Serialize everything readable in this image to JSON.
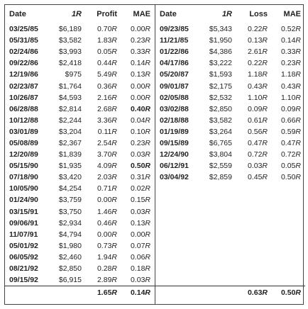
{
  "headers": {
    "left": [
      "Date",
      "1R",
      "Profit",
      "MAE"
    ],
    "right": [
      "Date",
      "1R",
      "Loss",
      "MAE"
    ]
  },
  "left_rows": [
    [
      "03/25/85",
      "$6,189",
      "0.70R",
      "0.00R"
    ],
    [
      "05/31/85",
      "$3,582",
      "1.83R",
      "0.23R"
    ],
    [
      "02/24/86",
      "$3,993",
      "0.05R",
      "0.33R"
    ],
    [
      "09/22/86",
      "$2,418",
      "0.44R",
      "0.14R"
    ],
    [
      "12/19/86",
      "$975",
      "5.49R",
      "0.13R"
    ],
    [
      "02/23/87",
      "$1,764",
      "0.36R",
      "0.00R"
    ],
    [
      "10/26/87",
      "$4,593",
      "2.16R",
      "0.00R"
    ],
    [
      "06/28/88",
      "$2,814",
      "2.68R",
      "0.40R"
    ],
    [
      "10/12/88",
      "$2,244",
      "3.36R",
      "0.04R"
    ],
    [
      "03/01/89",
      "$3,204",
      "0.11R",
      "0.10R"
    ],
    [
      "05/08/89",
      "$2,367",
      "2.54R",
      "0.23R"
    ],
    [
      "12/20/89",
      "$1,839",
      "3.70R",
      "0.03R"
    ],
    [
      "05/15/90",
      "$1,935",
      "4.09R",
      "0.50R"
    ],
    [
      "07/18/90",
      "$3,420",
      "2.03R",
      "0.31R"
    ],
    [
      "10/05/90",
      "$4,254",
      "0.71R",
      "0.02R"
    ],
    [
      "01/24/90",
      "$3,759",
      "0.00R",
      "0.15R"
    ],
    [
      "03/15/91",
      "$3,750",
      "1.46R",
      "0.03R"
    ],
    [
      "09/06/91",
      "$2,934",
      "0.46R",
      "0.13R"
    ],
    [
      "11/07/91",
      "$4,794",
      "0.00R",
      "0.00R"
    ],
    [
      "05/01/92",
      "$1,980",
      "0.73R",
      "0.07R"
    ],
    [
      "06/05/92",
      "$2,460",
      "1.94R",
      "0.06R"
    ],
    [
      "08/21/92",
      "$2,850",
      "0.28R",
      "0.18R"
    ],
    [
      "09/15/92",
      "$6,915",
      "2.89R",
      "0.03R"
    ]
  ],
  "left_bold_mae": [
    7,
    12
  ],
  "left_totals": [
    "",
    "",
    "1.65R",
    "0.14R"
  ],
  "right_rows": [
    [
      "09/23/85",
      "$5,343",
      "0.22R",
      "0.52R"
    ],
    [
      "11/21/85",
      "$1,950",
      "0.13R",
      "0.14R"
    ],
    [
      "01/22/86",
      "$4,386",
      "2.61R",
      "0.33R"
    ],
    [
      "04/17/86",
      "$3,222",
      "0.22R",
      "0.23R"
    ],
    [
      "05/20/87",
      "$1,593",
      "1.18R",
      "1.18R"
    ],
    [
      "09/01/87",
      "$2,175",
      "0.43R",
      "0.43R"
    ],
    [
      "02/05/88",
      "$2,532",
      "1.10R",
      "1.10R"
    ],
    [
      "03/02/88",
      "$2,850",
      "0.09R",
      "0.09R"
    ],
    [
      "02/18/88",
      "$3,582",
      "0.61R",
      "0.66R"
    ],
    [
      "01/19/89",
      "$3,264",
      "0.56R",
      "0.59R"
    ],
    [
      "09/15/89",
      "$6,765",
      "0.47R",
      "0.47R"
    ],
    [
      "12/24/90",
      "$3,804",
      "0.72R",
      "0.72R"
    ],
    [
      "06/12/91",
      "$2,559",
      "0.03R",
      "0.05R"
    ],
    [
      "03/04/92",
      "$2,859",
      "0.45R",
      "0.50R"
    ]
  ],
  "right_totals": [
    "",
    "",
    "0.63R",
    "0.50R"
  ]
}
